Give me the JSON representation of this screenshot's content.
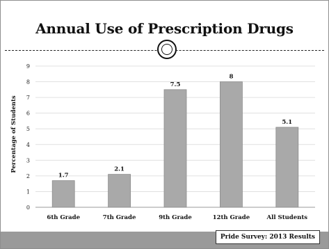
{
  "slide": {
    "title": "Annual Use of Prescription Drugs",
    "source_label": "Pride Survey: 2013 Results"
  },
  "chart_data": {
    "type": "bar",
    "title": "",
    "ylabel": "Percentage of Students",
    "xlabel": "",
    "categories": [
      "6th Grade",
      "7th Grade",
      "9th Grade",
      "12th Grade",
      "All Students"
    ],
    "values": [
      1.7,
      2.1,
      7.5,
      8,
      5.1
    ],
    "data_labels": [
      "1.7",
      "2.1",
      "7.5",
      "8",
      "5.1"
    ],
    "ylim": [
      0,
      9
    ],
    "yticks": [
      0,
      1,
      2,
      3,
      4,
      5,
      6,
      7,
      8,
      9
    ],
    "grid": true,
    "legend": "none",
    "colors": {
      "bar": "#a9a9a9",
      "bar_edge": "#8c8c8c",
      "grid": "#e0e0e0"
    }
  }
}
